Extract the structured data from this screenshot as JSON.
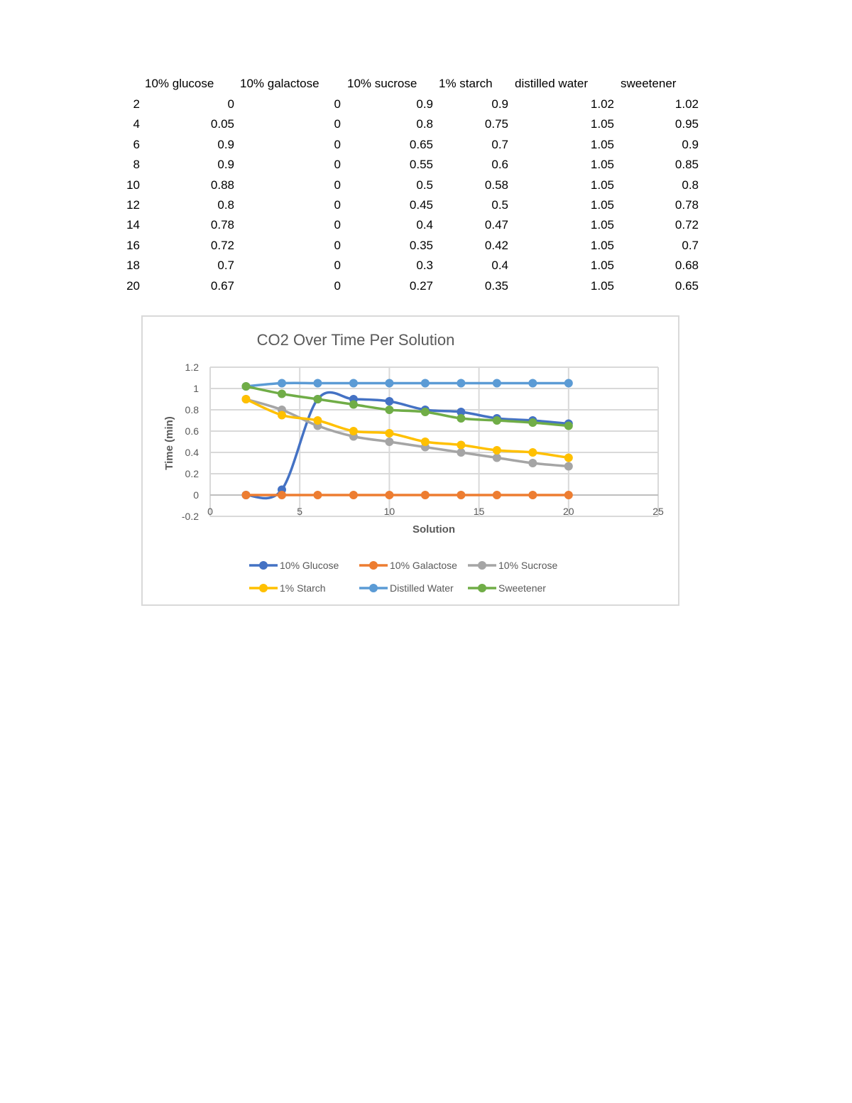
{
  "table": {
    "headers": [
      "",
      "10% glucose",
      "10% galactose",
      "10% sucrose",
      "1% starch",
      "distilled water",
      "sweetener"
    ],
    "rows": [
      [
        "2",
        "0",
        "0",
        "0.9",
        "0.9",
        "1.02",
        "1.02"
      ],
      [
        "4",
        "0.05",
        "0",
        "0.8",
        "0.75",
        "1.05",
        "0.95"
      ],
      [
        "6",
        "0.9",
        "0",
        "0.65",
        "0.7",
        "1.05",
        "0.9"
      ],
      [
        "8",
        "0.9",
        "0",
        "0.55",
        "0.6",
        "1.05",
        "0.85"
      ],
      [
        "10",
        "0.88",
        "0",
        "0.5",
        "0.58",
        "1.05",
        "0.8"
      ],
      [
        "12",
        "0.8",
        "0",
        "0.45",
        "0.5",
        "1.05",
        "0.78"
      ],
      [
        "14",
        "0.78",
        "0",
        "0.4",
        "0.47",
        "1.05",
        "0.72"
      ],
      [
        "16",
        "0.72",
        "0",
        "0.35",
        "0.42",
        "1.05",
        "0.7"
      ],
      [
        "18",
        "0.7",
        "0",
        "0.3",
        "0.4",
        "1.05",
        "0.68"
      ],
      [
        "20",
        "0.67",
        "0",
        "0.27",
        "0.35",
        "1.05",
        "0.65"
      ]
    ]
  },
  "chart_data": {
    "type": "line",
    "title": "CO2 Over Time Per Solution",
    "xlabel": "Solution",
    "ylabel": "Time (min)",
    "xlim": [
      0,
      25
    ],
    "ylim": [
      -0.2,
      1.2
    ],
    "x_ticks": [
      "0",
      "5",
      "10",
      "15",
      "20",
      "25"
    ],
    "y_ticks": [
      "-0.2",
      "0",
      "0.2",
      "0.4",
      "0.6",
      "0.8",
      "1",
      "1.2"
    ],
    "grid": true,
    "legend_position": "bottom",
    "smoothed": true,
    "x": [
      2,
      4,
      6,
      8,
      10,
      12,
      14,
      16,
      18,
      20
    ],
    "series": [
      {
        "name": "10% Glucose",
        "color": "#4472C4",
        "values": [
          0,
          0.05,
          0.9,
          0.9,
          0.88,
          0.8,
          0.78,
          0.72,
          0.7,
          0.67
        ]
      },
      {
        "name": "10% Galactose",
        "color": "#ED7D31",
        "values": [
          0,
          0,
          0,
          0,
          0,
          0,
          0,
          0,
          0,
          0
        ]
      },
      {
        "name": "10% Sucrose",
        "color": "#A5A5A5",
        "values": [
          0.9,
          0.8,
          0.65,
          0.55,
          0.5,
          0.45,
          0.4,
          0.35,
          0.3,
          0.27
        ]
      },
      {
        "name": "1% Starch",
        "color": "#FFC000",
        "values": [
          0.9,
          0.75,
          0.7,
          0.6,
          0.58,
          0.5,
          0.47,
          0.42,
          0.4,
          0.35
        ]
      },
      {
        "name": "Distilled Water",
        "color": "#5B9BD5",
        "values": [
          1.02,
          1.05,
          1.05,
          1.05,
          1.05,
          1.05,
          1.05,
          1.05,
          1.05,
          1.05
        ]
      },
      {
        "name": "Sweetener",
        "color": "#70AD47",
        "values": [
          1.02,
          0.95,
          0.9,
          0.85,
          0.8,
          0.78,
          0.72,
          0.7,
          0.68,
          0.65
        ]
      }
    ]
  }
}
